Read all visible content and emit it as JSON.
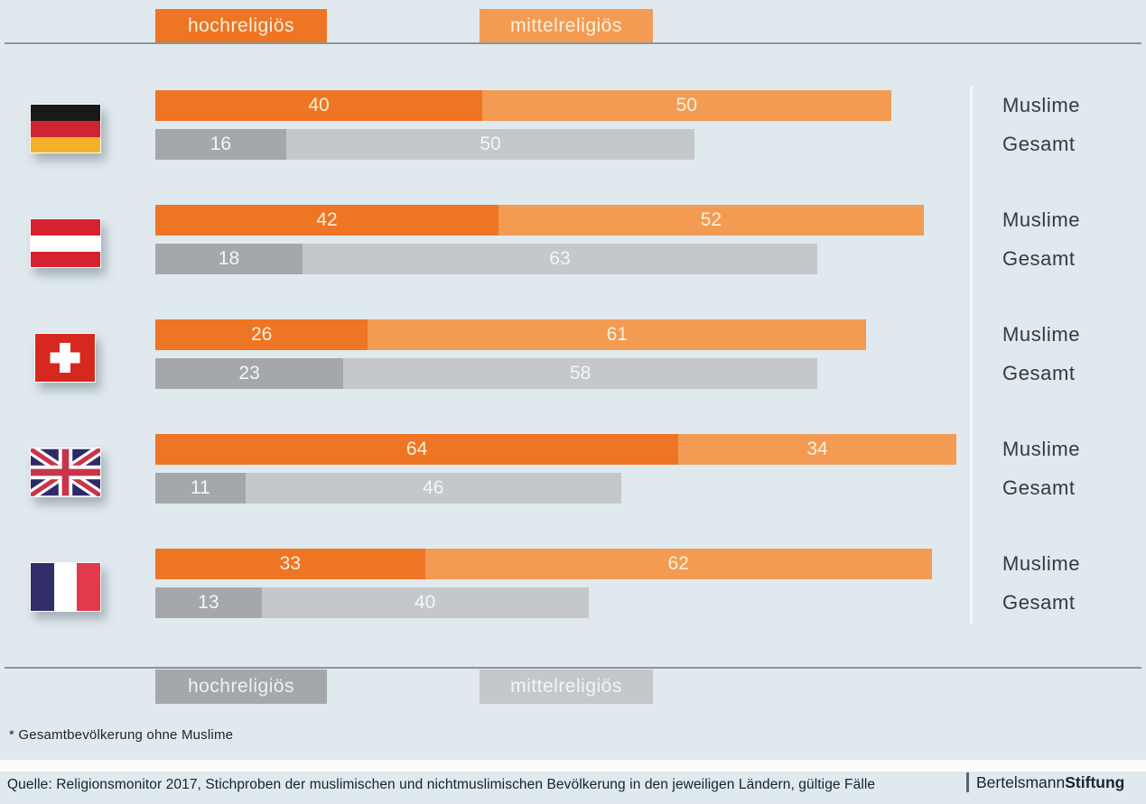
{
  "colors": {
    "background": "#dfe9ee",
    "orange_dark": "#ee7524",
    "orange_light": "#f39b53",
    "gray_dark": "#a5a8aa",
    "gray_light": "#c5c8ca",
    "rule_line": "#8c959b",
    "divider": "#f3f7f9",
    "text_dark": "#333b42",
    "bar_text_orange": "#f9f1dd",
    "bar_text_gray": "#f4f6f6",
    "white_band": "#fbfdfd",
    "logo_text": "#1a2430"
  },
  "chart_data": {
    "type": "bar",
    "orientation": "horizontal",
    "unit": "percent",
    "axis_max": 100,
    "grid": false,
    "legend_top": [
      {
        "label": "hochreligiös",
        "series": "Muslime hochreligiös",
        "color": "#ee7524"
      },
      {
        "label": "mittelreligiös",
        "series": "Muslime mittelreligiös",
        "color": "#f39b53"
      }
    ],
    "legend_bottom": [
      {
        "label": "hochreligiös",
        "series": "Gesamt hochreligiös",
        "color": "#a5a8aa"
      },
      {
        "label": "mittelreligiös",
        "series": "Gesamt mittelreligiös",
        "color": "#c5c8ca"
      }
    ],
    "row_labels": [
      "Muslime",
      "Gesamt"
    ],
    "countries": [
      {
        "name": "Deutschland",
        "flag": "de",
        "muslime": {
          "hochreligioes": 40,
          "mittelreligioes": 50
        },
        "gesamt": {
          "hochreligioes": 16,
          "mittelreligioes": 50
        }
      },
      {
        "name": "Österreich",
        "flag": "at",
        "muslime": {
          "hochreligioes": 42,
          "mittelreligioes": 52
        },
        "gesamt": {
          "hochreligioes": 18,
          "mittelreligioes": 63
        }
      },
      {
        "name": "Schweiz",
        "flag": "ch",
        "muslime": {
          "hochreligioes": 26,
          "mittelreligioes": 61
        },
        "gesamt": {
          "hochreligioes": 23,
          "mittelreligioes": 58
        }
      },
      {
        "name": "Großbritannien",
        "flag": "gb",
        "muslime": {
          "hochreligioes": 64,
          "mittelreligioes": 34
        },
        "gesamt": {
          "hochreligioes": 11,
          "mittelreligioes": 46
        }
      },
      {
        "name": "Frankreich",
        "flag": "fr",
        "muslime": {
          "hochreligioes": 33,
          "mittelreligioes": 62
        },
        "gesamt": {
          "hochreligioes": 13,
          "mittelreligioes": 40
        }
      }
    ]
  },
  "footnote": "* Gesamtbevölkerung ohne Muslime",
  "source": "Quelle: Religionsmonitor 2017, Stichproben der muslimischen und nichtmuslimischen Bevölkerung in den jeweiligen Ländern, gültige Fälle",
  "logo": {
    "text_regular": "Bertelsmann",
    "text_bold": "Stiftung"
  }
}
